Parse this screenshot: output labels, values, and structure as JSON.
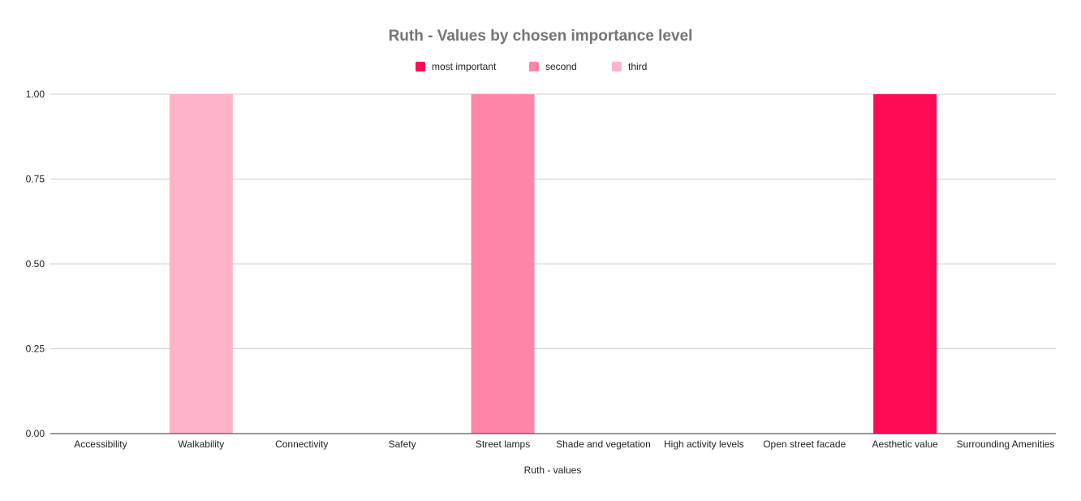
{
  "chart_data": {
    "type": "bar",
    "title": "Ruth - Values by chosen importance level",
    "xlabel": "Ruth - values",
    "ylabel": "",
    "ylim": [
      0,
      1
    ],
    "yticks": [
      "0.00",
      "0.25",
      "0.50",
      "0.75",
      "1.00"
    ],
    "ytick_values": [
      0,
      0.25,
      0.5,
      0.75,
      1
    ],
    "grid": true,
    "legend_position": "top-center",
    "categories": [
      "Accessibility",
      "Walkability",
      "Connectivity",
      "Safety",
      "Street lamps",
      "Shade and vegetation",
      "High activity levels",
      "Open street facade",
      "Aesthetic value",
      "Surrounding Amenities"
    ],
    "series": [
      {
        "name": "most important",
        "color": "#ff0a54",
        "values": [
          0,
          0,
          0,
          0,
          0,
          0,
          0,
          0,
          1,
          0
        ]
      },
      {
        "name": "second",
        "color": "#ff85a8",
        "values": [
          0,
          0,
          0,
          0,
          1,
          0,
          0,
          0,
          0,
          0
        ]
      },
      {
        "name": "third",
        "color": "#ffb3c8",
        "values": [
          0,
          1,
          0,
          0,
          0,
          0,
          0,
          0,
          0,
          0
        ]
      }
    ]
  }
}
